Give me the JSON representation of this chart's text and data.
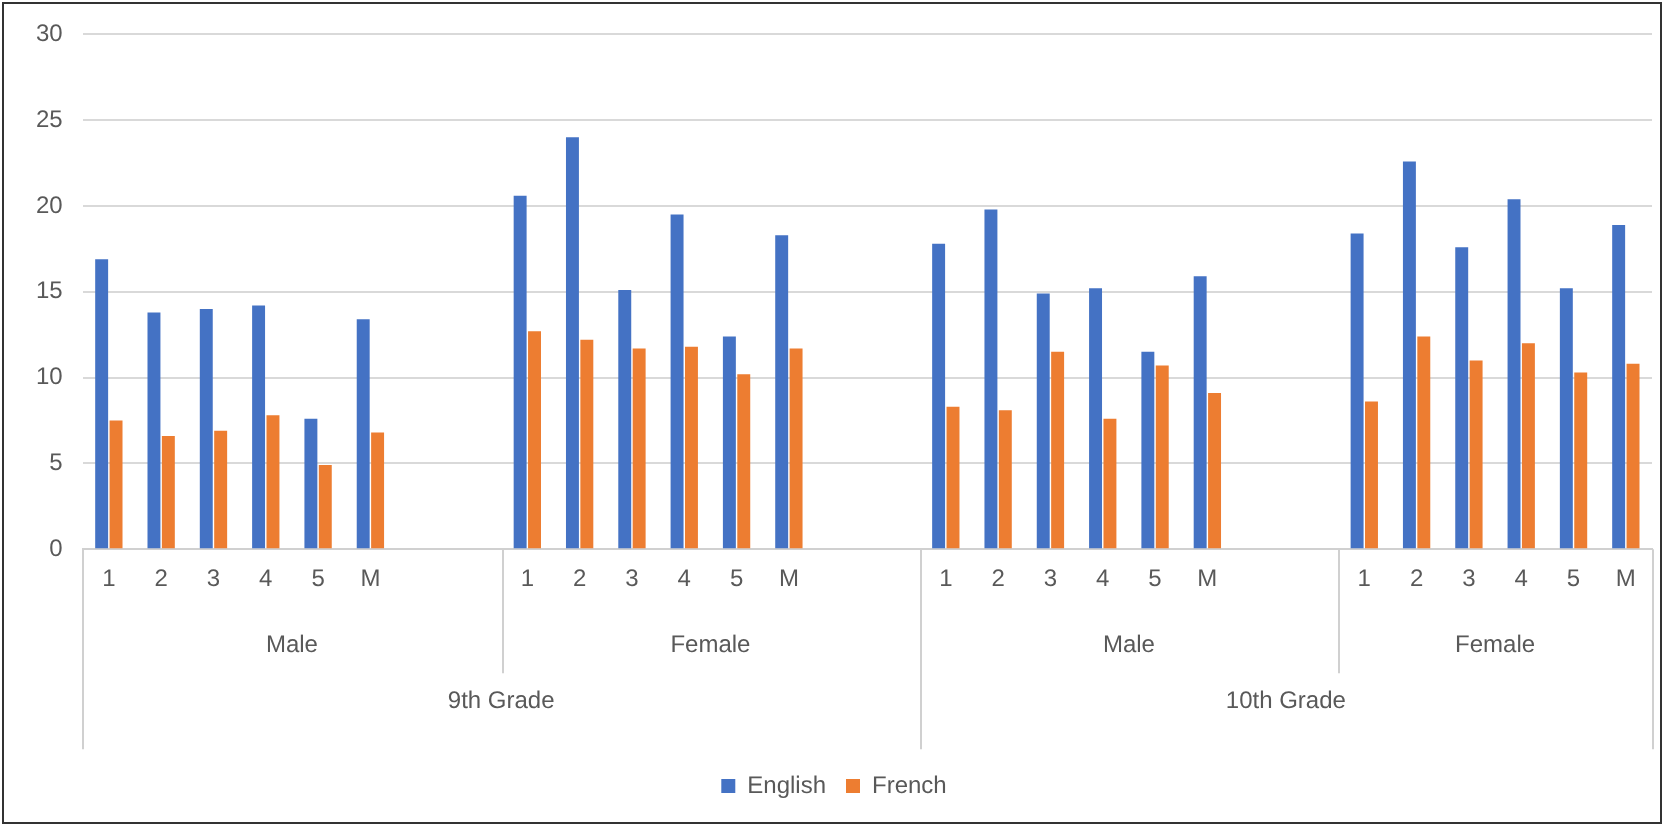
{
  "chart_data": {
    "type": "bar",
    "categories": [
      "1",
      "2",
      "3",
      "4",
      "5",
      "M",
      null,
      null,
      "1",
      "2",
      "3",
      "4",
      "5",
      "M",
      null,
      null,
      "1",
      "2",
      "3",
      "4",
      "5",
      "M",
      null,
      null,
      "1",
      "2",
      "3",
      "4",
      "5",
      "M"
    ],
    "series": [
      {
        "name": "English",
        "color": "#4472c4",
        "values": [
          16.9,
          13.8,
          14.0,
          14.2,
          7.6,
          13.4,
          null,
          null,
          20.6,
          24.0,
          15.1,
          19.5,
          12.4,
          18.3,
          null,
          null,
          17.8,
          19.8,
          14.9,
          15.2,
          11.5,
          15.9,
          null,
          null,
          18.4,
          22.6,
          17.6,
          20.4,
          15.2,
          18.9
        ]
      },
      {
        "name": "French",
        "color": "#ed7d31",
        "values": [
          7.5,
          6.6,
          6.9,
          7.8,
          4.9,
          6.8,
          null,
          null,
          12.7,
          12.2,
          11.7,
          11.8,
          10.2,
          11.7,
          null,
          null,
          8.3,
          8.1,
          11.5,
          7.6,
          10.7,
          9.1,
          null,
          null,
          8.6,
          12.4,
          11.0,
          12.0,
          10.3,
          10.8
        ]
      }
    ],
    "annotations": [
      "Male",
      "Female",
      "Male",
      "Female",
      "9th Grade",
      "10th Grade"
    ],
    "ylim": [
      0,
      30
    ],
    "yticks": [
      0,
      5,
      10,
      15,
      20,
      25,
      30
    ],
    "grid": "y",
    "legend": "bottom"
  }
}
